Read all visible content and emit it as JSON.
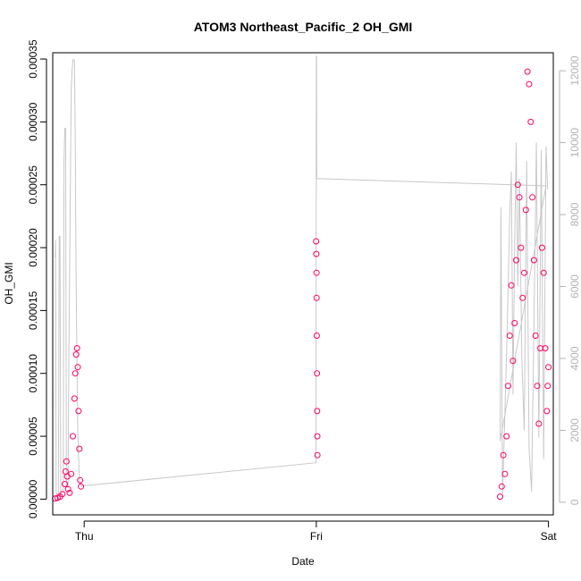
{
  "chart_data": {
    "type": "scatter",
    "title": "ATOM3 Northeast_Pacific_2 OH_GMI",
    "xlabel": "Date",
    "ylabel": "OH_GMI",
    "xlim": [
      "2017-10-04T20:45:00",
      "2017-10-07T00:30:00"
    ],
    "ylim": [
      -1.25e-05,
      0.000355
    ],
    "y2lim": [
      -350,
      12500
    ],
    "x_ticks": [
      {
        "label": "Thu",
        "value": "2017-10-05T00:00:00"
      },
      {
        "label": "Fri",
        "value": "2017-10-06T00:00:00"
      },
      {
        "label": "Sat",
        "value": "2017-10-07T00:00:00"
      }
    ],
    "y_ticks": [
      "0.00000",
      "0.00005",
      "0.00010",
      "0.00015",
      "0.00020",
      "0.00025",
      "0.00030",
      "0.00035"
    ],
    "y2_ticks": [
      "0",
      "2000",
      "4000",
      "6000",
      "8000",
      "10000",
      "12000"
    ],
    "colors": {
      "points": "#ff0066",
      "secondary_line": "#c8c8c8",
      "secondary_axis": "#b3b3b3"
    },
    "grid": false,
    "series": [
      {
        "marker": "open-circle",
        "points": [
          [
            "2017-10-04T21:00",
            5e-07
          ],
          [
            "2017-10-04T21:15",
            1e-06
          ],
          [
            "2017-10-04T21:30",
            2e-06
          ],
          [
            "2017-10-04T21:45",
            4e-06
          ],
          [
            "2017-10-04T22:00",
            1.2e-05
          ],
          [
            "2017-10-04T22:05",
            2.2e-05
          ],
          [
            "2017-10-04T22:10",
            3e-05
          ],
          [
            "2017-10-04T22:15",
            1.8e-05
          ],
          [
            "2017-10-04T22:20",
            8e-06
          ],
          [
            "2017-10-04T22:30",
            5e-06
          ],
          [
            "2017-10-04T22:40",
            2e-05
          ],
          [
            "2017-10-04T22:50",
            5e-05
          ],
          [
            "2017-10-04T23:00",
            8e-05
          ],
          [
            "2017-10-04T23:05",
            0.0001
          ],
          [
            "2017-10-04T23:10",
            0.000115
          ],
          [
            "2017-10-04T23:15",
            0.00012
          ],
          [
            "2017-10-04T23:20",
            0.000105
          ],
          [
            "2017-10-04T23:25",
            7e-05
          ],
          [
            "2017-10-04T23:30",
            4e-05
          ],
          [
            "2017-10-04T23:35",
            1.5e-05
          ],
          [
            "2017-10-04T23:40",
            1e-05
          ],
          [
            "2017-10-05T23:59",
            0.000205
          ],
          [
            "2017-10-06T00:00",
            0.000195
          ],
          [
            "2017-10-06T00:01",
            0.00018
          ],
          [
            "2017-10-06T00:02",
            0.00016
          ],
          [
            "2017-10-06T00:03",
            0.00013
          ],
          [
            "2017-10-06T00:04",
            0.0001
          ],
          [
            "2017-10-06T00:05",
            7e-05
          ],
          [
            "2017-10-06T00:06",
            5e-05
          ],
          [
            "2017-10-06T00:07",
            3.5e-05
          ],
          [
            "2017-10-06T19:00",
            2e-06
          ],
          [
            "2017-10-06T19:10",
            1e-05
          ],
          [
            "2017-10-06T19:20",
            3.5e-05
          ],
          [
            "2017-10-06T19:30",
            2e-05
          ],
          [
            "2017-10-06T19:40",
            5e-05
          ],
          [
            "2017-10-06T19:50",
            9e-05
          ],
          [
            "2017-10-06T20:00",
            0.00013
          ],
          [
            "2017-10-06T20:10",
            0.00017
          ],
          [
            "2017-10-06T20:20",
            0.00011
          ],
          [
            "2017-10-06T20:30",
            0.00014
          ],
          [
            "2017-10-06T20:40",
            0.00019
          ],
          [
            "2017-10-06T20:50",
            0.00025
          ],
          [
            "2017-10-06T21:00",
            0.00024
          ],
          [
            "2017-10-06T21:10",
            0.0002
          ],
          [
            "2017-10-06T21:20",
            0.00016
          ],
          [
            "2017-10-06T21:30",
            0.00018
          ],
          [
            "2017-10-06T21:40",
            0.00023
          ],
          [
            "2017-10-06T21:50",
            0.00034
          ],
          [
            "2017-10-06T22:00",
            0.00033
          ],
          [
            "2017-10-06T22:10",
            0.0003
          ],
          [
            "2017-10-06T22:20",
            0.00024
          ],
          [
            "2017-10-06T22:30",
            0.00019
          ],
          [
            "2017-10-06T22:40",
            0.00013
          ],
          [
            "2017-10-06T22:50",
            9e-05
          ],
          [
            "2017-10-06T23:00",
            6e-05
          ],
          [
            "2017-10-06T23:10",
            0.00012
          ],
          [
            "2017-10-06T23:20",
            0.0002
          ],
          [
            "2017-10-06T23:30",
            0.00018
          ],
          [
            "2017-10-06T23:40",
            0.00012
          ],
          [
            "2017-10-06T23:50",
            7e-05
          ],
          [
            "2017-10-06T23:55",
            9e-05
          ],
          [
            "2017-10-07T00:00",
            0.000105
          ]
        ]
      },
      {
        "axis": "right",
        "style": "line",
        "points": [
          [
            "2017-10-04T21:00",
            6800
          ],
          [
            "2017-10-04T21:03",
            7300
          ],
          [
            "2017-10-04T21:06",
            300
          ],
          [
            "2017-10-04T21:20",
            100
          ],
          [
            "2017-10-04T21:25",
            7400
          ],
          [
            "2017-10-04T21:30",
            7400
          ],
          [
            "2017-10-04T21:35",
            200
          ],
          [
            "2017-10-04T21:50",
            300
          ],
          [
            "2017-10-04T21:55",
            9500
          ],
          [
            "2017-10-04T22:00",
            10400
          ],
          [
            "2017-10-04T22:05",
            10400
          ],
          [
            "2017-10-04T22:10",
            500
          ],
          [
            "2017-10-04T22:20",
            400
          ],
          [
            "2017-10-04T22:25",
            4000
          ],
          [
            "2017-10-04T22:40",
            11500
          ],
          [
            "2017-10-04T22:45",
            12000
          ],
          [
            "2017-10-04T22:50",
            12300
          ],
          [
            "2017-10-04T23:00",
            12300
          ],
          [
            "2017-10-04T23:05",
            10000
          ],
          [
            "2017-10-04T23:10",
            6000
          ],
          [
            "2017-10-04T23:20",
            2000
          ],
          [
            "2017-10-04T23:30",
            600
          ],
          [
            "2017-10-04T23:40",
            450
          ],
          [
            "2017-10-05T23:58",
            1100
          ],
          [
            "2017-10-06T00:00",
            12400
          ],
          [
            "2017-10-06T00:02",
            12400
          ],
          [
            "2017-10-06T00:03",
            9000
          ],
          [
            "2017-10-06T23:40",
            8800
          ],
          [
            "2017-10-06T23:45",
            8800
          ],
          [
            "2017-10-06T19:00",
            1700
          ],
          [
            "2017-10-06T19:05",
            8200
          ],
          [
            "2017-10-06T19:15",
            200
          ],
          [
            "2017-10-06T19:30",
            2500
          ],
          [
            "2017-10-06T19:45",
            5000
          ],
          [
            "2017-10-06T20:00",
            8000
          ],
          [
            "2017-10-06T20:10",
            9200
          ],
          [
            "2017-10-06T20:20",
            3000
          ],
          [
            "2017-10-06T20:30",
            7000
          ],
          [
            "2017-10-06T20:40",
            10000
          ],
          [
            "2017-10-06T20:50",
            6000
          ],
          [
            "2017-10-06T21:00",
            9000
          ],
          [
            "2017-10-06T21:15",
            4000
          ],
          [
            "2017-10-06T21:30",
            2000
          ],
          [
            "2017-10-06T21:45",
            9500
          ],
          [
            "2017-10-06T22:00",
            1500
          ],
          [
            "2017-10-06T22:15",
            300
          ],
          [
            "2017-10-06T22:30",
            5000
          ],
          [
            "2017-10-06T22:45",
            10000
          ],
          [
            "2017-10-06T23:00",
            1800
          ],
          [
            "2017-10-06T23:15",
            9800
          ],
          [
            "2017-10-06T23:30",
            1200
          ],
          [
            "2017-10-06T23:45",
            9900
          ],
          [
            "2017-10-06T23:55",
            8700
          ]
        ]
      }
    ]
  }
}
